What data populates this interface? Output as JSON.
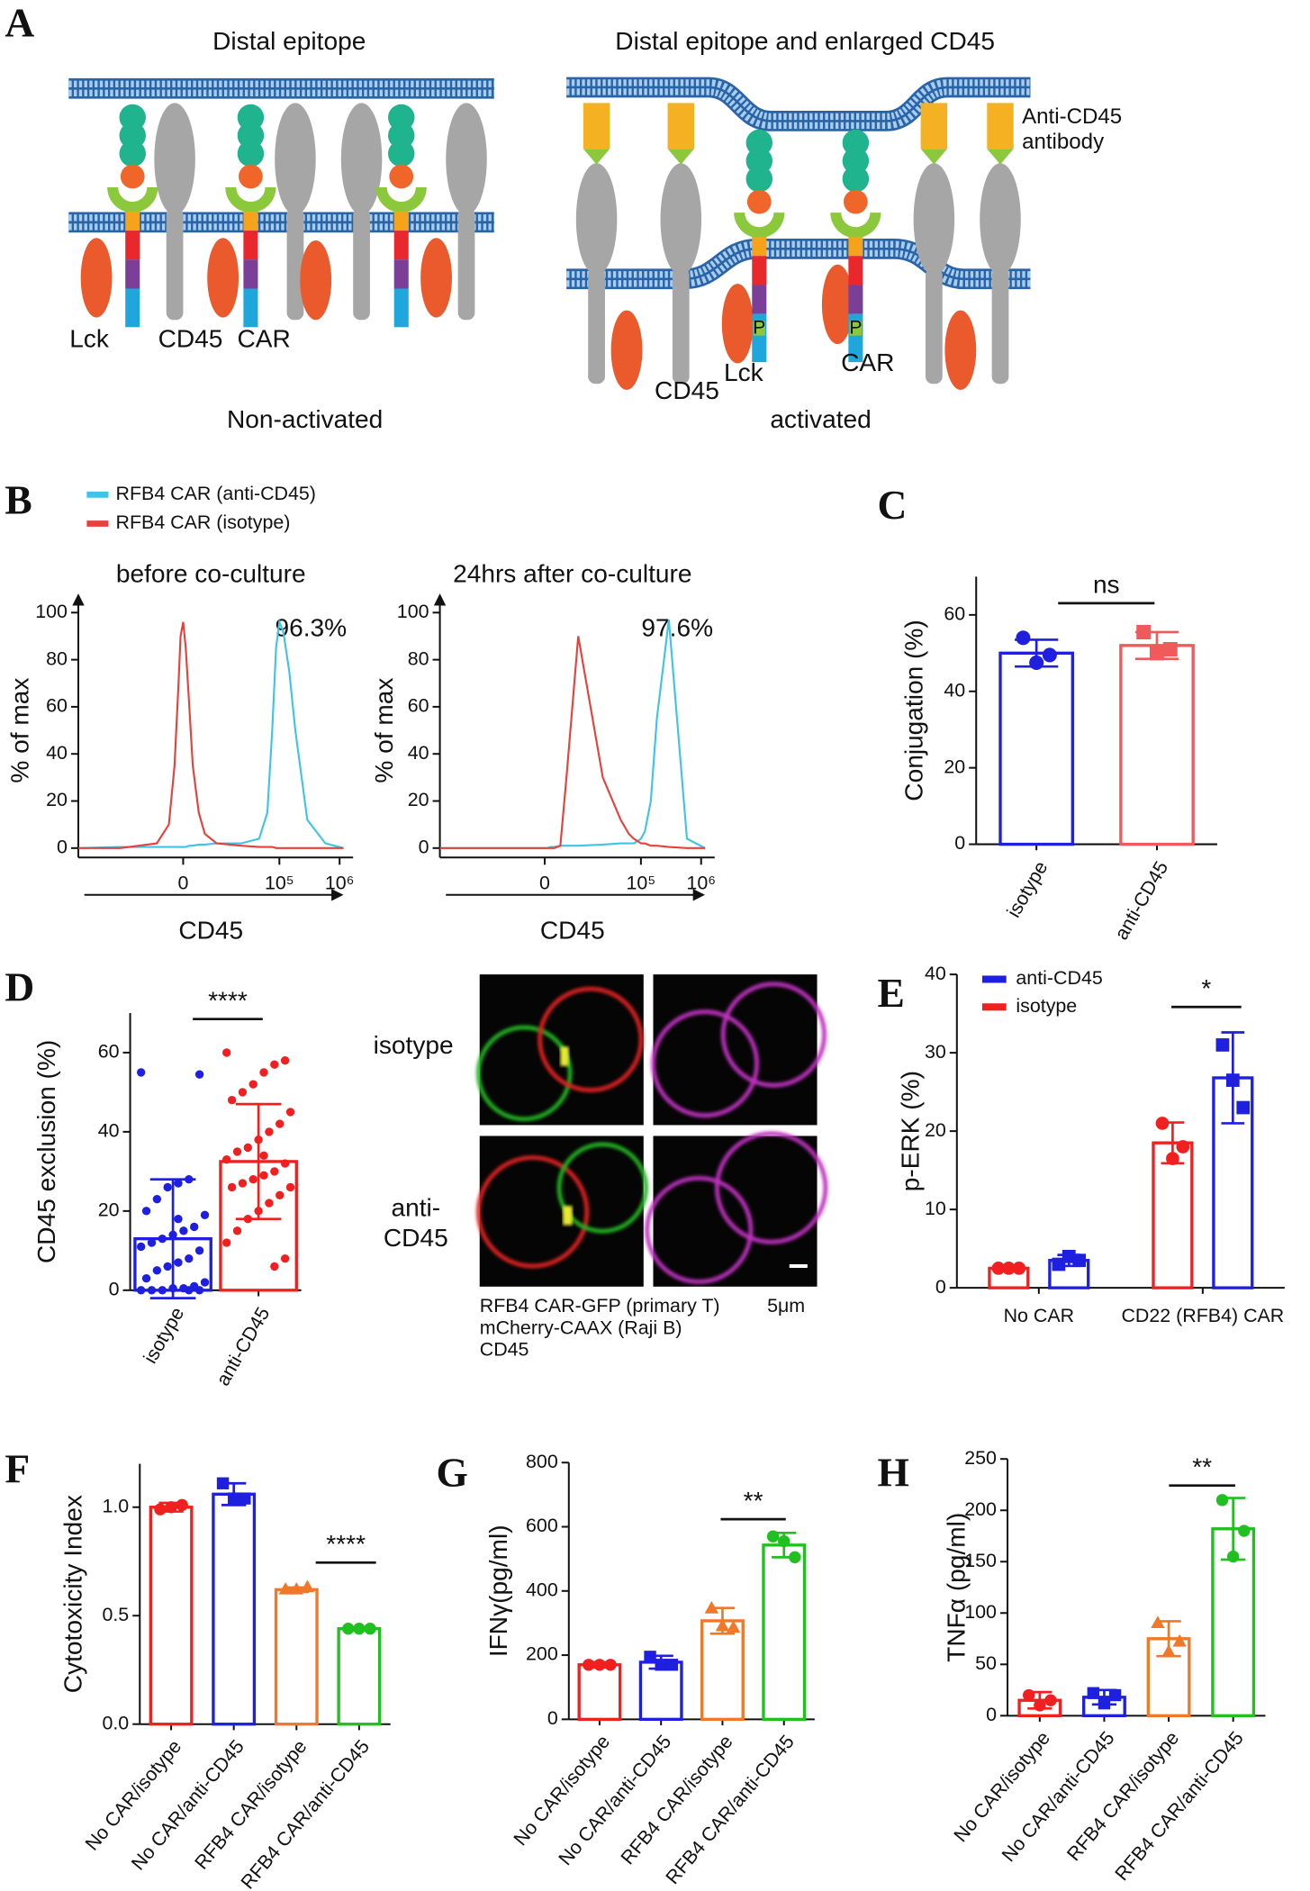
{
  "panel_a": {
    "panel": "A",
    "left": {
      "title": "Distal epitope",
      "labels": [
        "Lck",
        "CD45",
        "CAR"
      ],
      "caption": "Non-activated"
    },
    "right": {
      "title": "Distal epitope and enlarged CD45",
      "antibody_label": [
        "Anti-CD45",
        "antibody"
      ],
      "labels": [
        "CD45",
        "Lck",
        "CAR"
      ],
      "phospho": [
        "P",
        "P"
      ],
      "caption": "activated"
    }
  },
  "panel_d_images": {
    "row_labels": [
      [
        "isotype"
      ],
      [
        "anti-",
        "CD45"
      ]
    ],
    "channels": [
      "RFB4 CAR-GFP (primary T)",
      "mCherry-CAAX (Raji B)",
      "CD45"
    ],
    "channel_colors": [
      "#22b422",
      "#e02020",
      "#c030c0"
    ],
    "scale_bar": "5μm"
  },
  "chart_data": [
    {
      "type": "line",
      "panel": "B",
      "title": "before co-culture",
      "xlabel": "CD45",
      "ylabel": "% of max",
      "annotation": "96.3%",
      "xscale": "arcsinh",
      "x": [
        -139000,
        -27500,
        -6000,
        -2900,
        -1700,
        -900,
        -500,
        0,
        500,
        1200,
        1900,
        3200,
        4700,
        8400,
        23000,
        46000,
        63000,
        76000,
        88000,
        100000,
        116000,
        146000,
        184000,
        291000,
        581000,
        1160000
      ],
      "series": [
        {
          "name": "RFB4 CAR (anti-CD45)",
          "color": "#3ec4e6",
          "values": [
            0,
            0.5,
            0.5,
            0.5,
            0.5,
            0.5,
            0.5,
            0.5,
            0.5,
            1,
            1,
            1.5,
            1.5,
            2,
            2,
            4,
            15,
            50,
            85,
            96,
            92,
            75,
            50,
            12,
            2,
            0
          ]
        },
        {
          "name": "RFB4 CAR (isotype)",
          "color": "#e8413c",
          "values": [
            0,
            0,
            2,
            10,
            35,
            70,
            90,
            96,
            85,
            60,
            35,
            15,
            6,
            2,
            1,
            0.5,
            0.5,
            0.5,
            0,
            0,
            0,
            0,
            0,
            0,
            0,
            0
          ]
        }
      ],
      "xlim": [
        -139000,
        1160000
      ],
      "ylim": [
        -4,
        104
      ],
      "xticks": [
        {
          "value": 0,
          "label": "0"
        },
        {
          "value": 100000,
          "label": "10⁵"
        },
        {
          "value": 1000000,
          "label": "10⁶"
        }
      ],
      "yticks": [
        0,
        20,
        40,
        60,
        80,
        100
      ]
    },
    {
      "type": "line",
      "title": "24hrs after  co-culture",
      "xlabel": "CD45",
      "ylabel": "% of max",
      "annotation": "97.6%",
      "xscale": "arcsinh",
      "x": [
        -139000,
        -27500,
        -6000,
        -2900,
        -1700,
        -900,
        -500,
        0,
        500,
        1200,
        1900,
        3200,
        4700,
        8400,
        23000,
        46000,
        63000,
        76000,
        88000,
        100000,
        116000,
        146000,
        184000,
        291000,
        581000,
        1160000
      ],
      "series": [
        {
          "color": "#3ec4e6",
          "values": [
            0,
            0,
            0,
            0,
            0,
            0,
            0,
            0,
            0,
            0.5,
            0.5,
            1,
            1,
            1,
            1.5,
            2,
            2,
            2,
            3,
            4,
            7,
            20,
            55,
            97,
            4,
            0
          ]
        },
        {
          "color": "#e8413c",
          "values": [
            0,
            0,
            0,
            0,
            0,
            0,
            0,
            0,
            0,
            0,
            0,
            1,
            30,
            90,
            30,
            12,
            6,
            4,
            3,
            2,
            2,
            1,
            1,
            0.5,
            0,
            0
          ]
        }
      ],
      "xlim": [
        -139000,
        1160000
      ],
      "ylim": [
        -4,
        104
      ],
      "xticks": [
        {
          "value": 0,
          "label": "0"
        },
        {
          "value": 100000,
          "label": "10⁵"
        },
        {
          "value": 1000000,
          "label": "10⁶"
        }
      ],
      "yticks": [
        0,
        20,
        40,
        60,
        80,
        100
      ]
    },
    {
      "type": "bar",
      "panel": "C",
      "ylabel": "Conjugation (%)",
      "categories": [
        "isotype",
        "anti-CD45"
      ],
      "values": [
        50,
        52
      ],
      "errors": [
        3.5,
        3.5
      ],
      "points": [
        [
          54,
          47.5,
          49.5
        ],
        [
          55.5,
          50,
          51
        ]
      ],
      "colors": [
        "#1f1fe0",
        "#f05a5a"
      ],
      "markers": [
        "circle",
        "square"
      ],
      "significance": "ns",
      "ylim": [
        0,
        70
      ],
      "yticks": [
        0,
        20,
        40,
        60
      ]
    },
    {
      "type": "bar",
      "panel": "D",
      "ylabel": "CD45 exclusion (%)",
      "categories": [
        "isotype",
        "anti-CD45"
      ],
      "values": [
        13,
        32.5
      ],
      "errors": [
        15,
        14.5
      ],
      "points": [
        [
          55,
          54.5,
          28,
          27,
          26,
          23,
          20,
          19,
          16,
          15,
          14,
          13,
          12,
          11,
          10,
          8,
          7,
          6,
          5,
          3,
          2,
          1,
          0.5,
          0.5,
          0,
          0,
          0,
          0,
          0,
          18
        ],
        [
          60,
          58,
          57,
          55,
          52,
          50,
          48,
          45,
          42,
          40,
          38,
          36,
          35,
          33,
          32,
          30,
          29,
          28,
          27,
          26,
          26,
          24,
          22,
          20,
          18,
          15,
          12,
          8,
          6,
          34
        ]
      ],
      "colors": [
        "#1f1fe0",
        "#f02020"
      ],
      "markers": [
        "circle",
        "circle"
      ],
      "significance": "****",
      "ylim": [
        0,
        70
      ],
      "yticks": [
        0,
        20,
        40,
        60
      ]
    },
    {
      "type": "bar",
      "panel": "E",
      "ylabel": "p-ERK (%)",
      "categories": [
        "No CAR",
        "CD22 (RFB4) CAR"
      ],
      "series": [
        {
          "name": "anti-CD45",
          "color": "#1f1fe0",
          "marker": "square",
          "values": [
            3.5,
            26.8
          ],
          "errors": [
            0.7,
            5.8
          ],
          "points": [
            [
              3,
              4,
              3.5
            ],
            [
              31,
              26.5,
              23
            ]
          ]
        },
        {
          "name": "isotype",
          "color": "#f02020",
          "marker": "circle",
          "values": [
            2.5,
            18.5
          ],
          "errors": [
            0.2,
            2.6
          ],
          "points": [
            [
              2.5,
              2.5,
              2.5
            ],
            [
              21,
              16.5,
              18
            ]
          ]
        }
      ],
      "significance": "*",
      "ylim": [
        0,
        40
      ],
      "yticks": [
        0,
        10,
        20,
        30,
        40
      ]
    },
    {
      "type": "bar",
      "panel": "F",
      "ylabel": "Cytotoxicity Index",
      "categories": [
        "No CAR/isotype",
        "No CAR/anti-CD45",
        "RFB4 CAR/isotype",
        "RFB4 CAR/anti-CD45"
      ],
      "values": [
        1.0,
        1.06,
        0.62,
        0.44
      ],
      "errors": [
        0.02,
        0.05,
        0.01,
        0.005
      ],
      "points": [
        [
          0.99,
          1.0,
          1.01
        ],
        [
          1.11,
          1.04,
          1.04
        ],
        [
          0.62,
          0.62,
          0.63
        ],
        [
          0.44,
          0.44,
          0.44
        ]
      ],
      "colors": [
        "#f02020",
        "#1f1fe0",
        "#f07828",
        "#20c020"
      ],
      "markers": [
        "circle",
        "square",
        "triangle",
        "circle"
      ],
      "significance": "****",
      "ylim": [
        0,
        1.2
      ],
      "yticks": [
        {
          "value": 0,
          "label": "0.0"
        },
        {
          "value": 0.5,
          "label": "0.5"
        },
        {
          "value": 1,
          "label": "1.0"
        }
      ]
    },
    {
      "type": "bar",
      "panel": "G",
      "ylabel": "IFNγ(pg/ml)",
      "categories": [
        "No CAR/isotype",
        "No CAR/anti-CD45",
        "RFB4 CAR/isotype",
        "RFB4 CAR/anti-CD45"
      ],
      "values": [
        170,
        178,
        307,
        543
      ],
      "errors": [
        8,
        20,
        40,
        38
      ],
      "points": [
        [
          170,
          170,
          170
        ],
        [
          195,
          170,
          170
        ],
        [
          345,
          290,
          285
        ],
        [
          570,
          555,
          505
        ]
      ],
      "colors": [
        "#f02020",
        "#1f1fe0",
        "#f07828",
        "#20c020"
      ],
      "markers": [
        "circle",
        "square",
        "triangle",
        "circle"
      ],
      "significance": "**",
      "ylim": [
        0,
        800
      ],
      "yticks": [
        0,
        200,
        400,
        600,
        800
      ]
    },
    {
      "type": "bar",
      "panel": "H",
      "ylabel": "TNFα (pg/ml)",
      "categories": [
        "No CAR/isotype",
        "No CAR/anti-CD45",
        "RFB4 CAR/isotype",
        "RFB4 CAR/anti-CD45"
      ],
      "values": [
        15,
        18,
        75,
        182
      ],
      "errors": [
        8,
        7,
        17,
        30
      ],
      "points": [
        [
          20,
          10,
          15
        ],
        [
          22,
          12,
          20
        ],
        [
          90,
          62,
          72
        ],
        [
          210,
          155,
          180
        ]
      ],
      "colors": [
        "#f02020",
        "#1f1fe0",
        "#f07828",
        "#20c020"
      ],
      "markers": [
        "circle",
        "square",
        "triangle",
        "circle"
      ],
      "significance": "**",
      "ylim": [
        0,
        250
      ],
      "yticks": [
        0,
        50,
        100,
        150,
        200,
        250
      ]
    }
  ]
}
